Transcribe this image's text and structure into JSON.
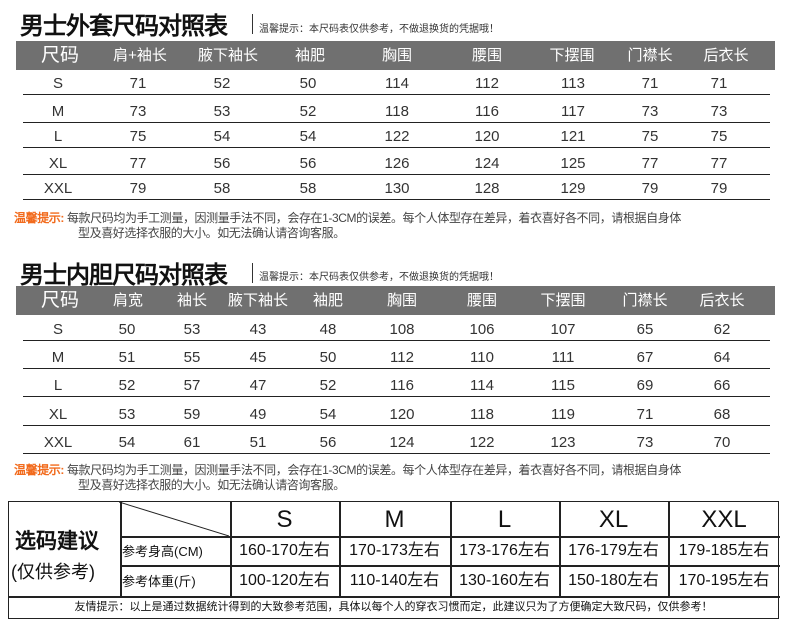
{
  "colors": {
    "header_bg": "#707070",
    "tip_label": "#f26b1d"
  },
  "outer": {
    "title": "男士外套尺码对照表",
    "tip": "温馨提示：本尺码表仅供参考，不做退换货的凭据哦！",
    "headers": [
      "尺码",
      "肩+袖长",
      "腋下袖长",
      "袖肥",
      "胸围",
      "腰围",
      "下摆围",
      "门襟长",
      "后衣长"
    ],
    "rows": [
      [
        "S",
        "71",
        "52",
        "50",
        "114",
        "112",
        "113",
        "71",
        "71"
      ],
      [
        "M",
        "73",
        "53",
        "52",
        "118",
        "116",
        "117",
        "73",
        "73"
      ],
      [
        "L",
        "75",
        "54",
        "54",
        "122",
        "120",
        "121",
        "75",
        "75"
      ],
      [
        "XL",
        "77",
        "56",
        "56",
        "126",
        "124",
        "125",
        "77",
        "77"
      ],
      [
        "XXL",
        "79",
        "58",
        "58",
        "130",
        "128",
        "129",
        "79",
        "79"
      ]
    ],
    "note_label": "温馨提示:",
    "note_text": "每款尺码均为手工测量，因测量手法不同，会存在1-3CM的误差。每个人体型存在差异，着衣喜好各不同，请根据自身体",
    "note_text2": "型及喜好选择衣服的大小。如无法确认请咨询客服。"
  },
  "inner": {
    "title": "男士内胆尺码对照表",
    "tip": "温馨提示：本尺码表仅供参考，不做退换货的凭据哦！",
    "headers": [
      "尺码",
      "肩宽",
      "袖长",
      "腋下袖长",
      "袖肥",
      "胸围",
      "腰围",
      "下摆围",
      "门襟长",
      "后衣长"
    ],
    "rows": [
      [
        "S",
        "50",
        "53",
        "43",
        "48",
        "108",
        "106",
        "107",
        "65",
        "62"
      ],
      [
        "M",
        "51",
        "55",
        "45",
        "50",
        "112",
        "110",
        "111",
        "67",
        "64"
      ],
      [
        "L",
        "52",
        "57",
        "47",
        "52",
        "116",
        "114",
        "115",
        "69",
        "66"
      ],
      [
        "XL",
        "53",
        "59",
        "49",
        "54",
        "120",
        "118",
        "119",
        "71",
        "68"
      ],
      [
        "XXL",
        "54",
        "61",
        "51",
        "56",
        "124",
        "122",
        "123",
        "73",
        "70"
      ]
    ],
    "note_label": "温馨提示:",
    "note_text": "每款尺码均为手工测量，因测量手法不同，会存在1-3CM的误差。每个人体型存在差异，着衣喜好各不同，请根据自身体",
    "note_text2": "型及喜好选择衣服的大小。如无法确认请咨询客服。"
  },
  "advice": {
    "title": "选码建议",
    "subtitle": "(仅供参考)",
    "sizes": [
      "S",
      "M",
      "L",
      "XL",
      "XXL"
    ],
    "height_label": "参考身高(CM)",
    "heights": [
      "160-170左右",
      "170-173左右",
      "173-176左右",
      "176-179左右",
      "179-185左右"
    ],
    "weight_label": "参考体重(斤)",
    "weights": [
      "100-120左右",
      "110-140左右",
      "130-160左右",
      "150-180左右",
      "170-195左右"
    ],
    "footer": "友情提示：以上是通过数据统计得到的大致参考范围，具体以每个人的穿衣习惯而定，此建议只为了方便确定大致尺码，仅供参考！"
  }
}
